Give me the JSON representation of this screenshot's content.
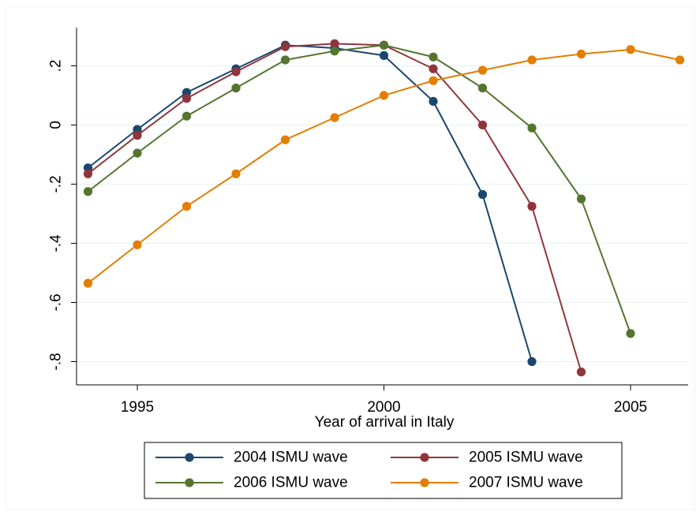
{
  "chart_data": {
    "type": "line",
    "title": "",
    "xlabel": "Year of arrival in Italy",
    "ylabel": "",
    "xlim": [
      1994,
      2006
    ],
    "ylim": [
      -0.88,
      0.32
    ],
    "x_ticks": [
      1995,
      2000,
      2005
    ],
    "x_tick_labels": [
      "1995",
      "2000",
      "2005"
    ],
    "y_ticks": [
      0.2,
      0,
      -0.2,
      -0.4,
      -0.6,
      -0.8
    ],
    "y_tick_labels": [
      ".2",
      "0",
      "-.2",
      "-.4",
      "-.6",
      "-.8"
    ],
    "grid": "horizontal",
    "background": "#ffffff",
    "plot_background": "#ffffff",
    "gridline_color": "#eaf2f3",
    "legend": {
      "position": "bottom",
      "columns": 2
    },
    "series": [
      {
        "name": "2004 ISMU wave",
        "color": "#1a476f",
        "x": [
          1994,
          1995,
          1996,
          1997,
          1998,
          1999,
          2000,
          2001,
          2002,
          2003
        ],
        "y": [
          -0.145,
          -0.015,
          0.11,
          0.19,
          0.27,
          0.26,
          0.235,
          0.08,
          -0.235,
          -0.8
        ]
      },
      {
        "name": "2005 ISMU wave",
        "color": "#90353b",
        "x": [
          1994,
          1995,
          1996,
          1997,
          1998,
          1999,
          2000,
          2001,
          2002,
          2003,
          2004
        ],
        "y": [
          -0.165,
          -0.035,
          0.09,
          0.18,
          0.265,
          0.275,
          0.27,
          0.19,
          0.0,
          -0.275,
          -0.835
        ]
      },
      {
        "name": "2006 ISMU wave",
        "color": "#55752f",
        "x": [
          1994,
          1995,
          1996,
          1997,
          1998,
          1999,
          2000,
          2001,
          2002,
          2003,
          2004,
          2005
        ],
        "y": [
          -0.225,
          -0.095,
          0.03,
          0.125,
          0.22,
          0.25,
          0.27,
          0.23,
          0.125,
          -0.01,
          -0.25,
          -0.705
        ]
      },
      {
        "name": "2007 ISMU wave",
        "color": "#e37e00",
        "x": [
          1994,
          1995,
          1996,
          1997,
          1998,
          1999,
          2000,
          2001,
          2002,
          2003,
          2004,
          2005,
          2006
        ],
        "y": [
          -0.535,
          -0.405,
          -0.275,
          -0.165,
          -0.05,
          0.025,
          0.1,
          0.15,
          0.185,
          0.22,
          0.24,
          0.255,
          0.22
        ]
      }
    ]
  }
}
